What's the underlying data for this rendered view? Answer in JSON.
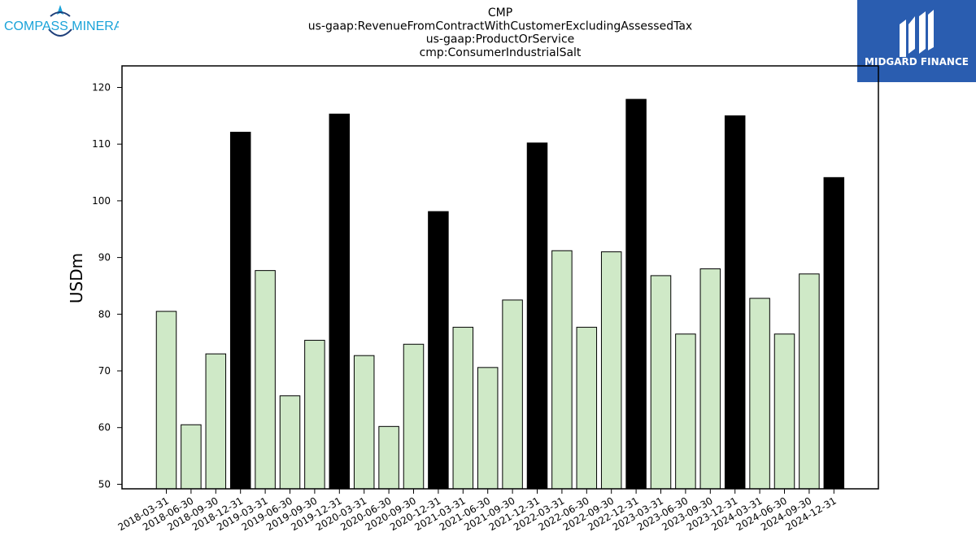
{
  "logos": {
    "left_text": "COMPASS MINERALS",
    "right_text": "MIDGARD FINANCE",
    "right_bg": "#2a5db0",
    "left_color": "#1aa3d9"
  },
  "colors": {
    "regular_bar": "#cfe9c7",
    "q4_bar": "#000000",
    "edge": "#000000"
  },
  "chart_data": {
    "type": "bar",
    "title": [
      "CMP",
      "us-gaap:RevenueFromContractWithCustomerExcludingAssessedTax",
      "us-gaap:ProductOrService",
      "cmp:ConsumerIndustrialSalt"
    ],
    "xlabel": "",
    "ylabel": "USDm",
    "ylim": [
      49.2,
      123.8
    ],
    "yticks": [
      50,
      60,
      70,
      80,
      90,
      100,
      110,
      120
    ],
    "grid": false,
    "categories": [
      "2018-03-31",
      "2018-06-30",
      "2018-09-30",
      "2018-12-31",
      "2019-03-31",
      "2019-06-30",
      "2019-09-30",
      "2019-12-31",
      "2020-03-31",
      "2020-06-30",
      "2020-09-30",
      "2020-12-31",
      "2021-03-31",
      "2021-06-30",
      "2021-09-30",
      "2021-12-31",
      "2022-03-31",
      "2022-06-30",
      "2022-09-30",
      "2022-12-31",
      "2023-03-31",
      "2023-06-30",
      "2023-09-30",
      "2023-12-31",
      "2024-03-31",
      "2024-06-30",
      "2024-09-30",
      "2024-12-31"
    ],
    "values": [
      80.5,
      60.5,
      73.0,
      112.1,
      87.7,
      65.6,
      75.4,
      115.3,
      72.7,
      60.2,
      74.7,
      98.1,
      77.7,
      70.6,
      82.5,
      110.2,
      91.2,
      77.7,
      91.0,
      117.9,
      86.8,
      76.5,
      88.0,
      115.0,
      82.8,
      76.5,
      87.1,
      104.1
    ],
    "highlight": [
      "regular",
      "regular",
      "regular",
      "q4",
      "regular",
      "regular",
      "regular",
      "q4",
      "regular",
      "regular",
      "regular",
      "q4",
      "regular",
      "regular",
      "regular",
      "q4",
      "regular",
      "regular",
      "regular",
      "q4",
      "regular",
      "regular",
      "regular",
      "q4",
      "regular",
      "regular",
      "regular",
      "q4"
    ]
  }
}
